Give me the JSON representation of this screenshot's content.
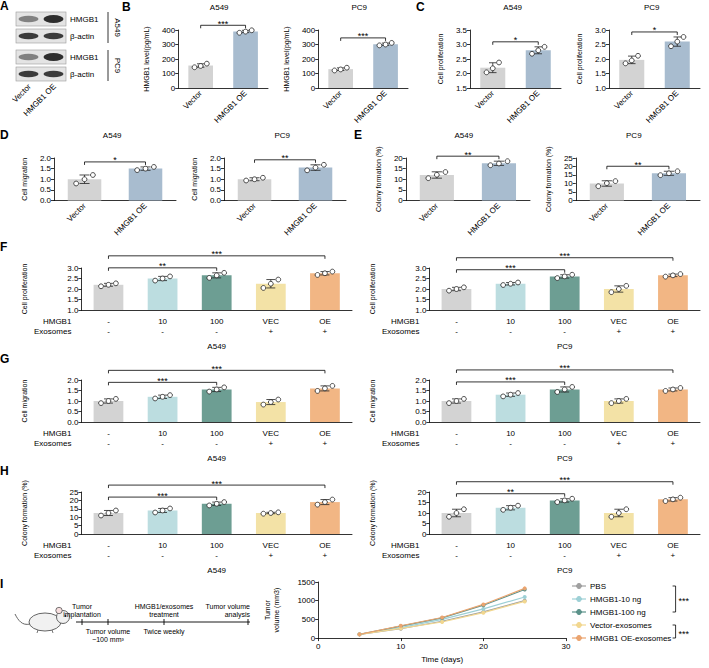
{
  "chart_data": [
    {
      "panel": "B",
      "type": "bar",
      "title": "A549",
      "y_label": "HMGB1 level(pg/mL)",
      "categories": [
        "Vector",
        "HMGB1 OE"
      ],
      "values": [
        155,
        390
      ],
      "errors": [
        12,
        8
      ],
      "points": [
        [
          143,
          152,
          168
        ],
        [
          381,
          389,
          398
        ]
      ],
      "colors": [
        "#d3d3d3",
        "#a8bccf"
      ],
      "ylim": [
        0,
        400
      ],
      "yticks": [
        0,
        100,
        200,
        300,
        400
      ],
      "grid": false,
      "comparisons": [
        {
          "groups": [
            0,
            1
          ],
          "label": "***"
        }
      ]
    },
    {
      "type": "bar",
      "title": "PC9",
      "y_label": "HMGB1 level(pg/mL)",
      "categories": [
        "Vector",
        "HMGB1 OE"
      ],
      "values": [
        130,
        302
      ],
      "errors": [
        9,
        8
      ],
      "points": [
        [
          121,
          128,
          140
        ],
        [
          294,
          300,
          311
        ]
      ],
      "colors": [
        "#d3d3d3",
        "#a8bccf"
      ],
      "ylim": [
        0,
        400
      ],
      "yticks": [
        0,
        100,
        200,
        300,
        400
      ],
      "grid": false,
      "comparisons": [
        {
          "groups": [
            0,
            1
          ],
          "label": "***"
        }
      ]
    },
    {
      "panel": "C",
      "type": "bar",
      "title": "A549",
      "y_label": "Cell proliferation",
      "categories": [
        "Vector",
        "HMGB1 OE"
      ],
      "values": [
        2.2,
        2.8
      ],
      "errors": [
        0.17,
        0.12
      ],
      "points": [
        [
          2.04,
          2.18,
          2.38
        ],
        [
          2.68,
          2.8,
          2.92
        ]
      ],
      "colors": [
        "#d3d3d3",
        "#a8bccf"
      ],
      "ylim": [
        1.5,
        3.5
      ],
      "yticks": [
        1.5,
        {
          "value": 2,
          "label": "2.0"
        },
        2.5,
        {
          "value": 3,
          "label": "3.0"
        },
        3.5
      ],
      "grid": false,
      "comparisons": [
        {
          "groups": [
            0,
            1
          ],
          "label": "*"
        }
      ]
    },
    {
      "type": "bar",
      "title": "PC9",
      "y_label": "Cell proliferation",
      "categories": [
        "Vector",
        "HMGB1 OE"
      ],
      "values": [
        1.97,
        2.6
      ],
      "errors": [
        0.13,
        0.16
      ],
      "points": [
        [
          1.85,
          1.95,
          2.11
        ],
        [
          2.44,
          2.6,
          2.76
        ]
      ],
      "colors": [
        "#d3d3d3",
        "#a8bccf"
      ],
      "ylim": [
        1,
        3
      ],
      "yticks": [
        {
          "value": 1,
          "label": "1.0"
        },
        1.5,
        {
          "value": 2,
          "label": "2.0"
        },
        2.5,
        {
          "value": 3,
          "label": "3.0"
        }
      ],
      "grid": false,
      "comparisons": [
        {
          "groups": [
            0,
            1
          ],
          "label": "*"
        }
      ]
    },
    {
      "panel": "D",
      "type": "bar",
      "title": "A549",
      "y_label": "Cell migration",
      "categories": [
        "Vector",
        "HMGB1 OE"
      ],
      "values": [
        1.0,
        1.5
      ],
      "errors": [
        0.2,
        0.08
      ],
      "points": [
        [
          0.8,
          1.0,
          1.2
        ],
        [
          1.43,
          1.5,
          1.58
        ]
      ],
      "colors": [
        "#d3d3d3",
        "#a8bccf"
      ],
      "ylim": [
        0,
        2
      ],
      "yticks": [
        {
          "value": 0,
          "label": "0.0"
        },
        0.5,
        {
          "value": 1,
          "label": "1.0"
        },
        1.5,
        {
          "value": 2,
          "label": "2.0"
        }
      ],
      "grid": false,
      "comparisons": [
        {
          "groups": [
            0,
            1
          ],
          "label": "*"
        }
      ]
    },
    {
      "type": "bar",
      "title": "PC9",
      "y_label": "Cell migration",
      "categories": [
        "Vector",
        "HMGB1 OE"
      ],
      "values": [
        1.0,
        1.55
      ],
      "errors": [
        0.07,
        0.13
      ],
      "points": [
        [
          0.94,
          1.0,
          1.07
        ],
        [
          1.42,
          1.55,
          1.68
        ]
      ],
      "colors": [
        "#d3d3d3",
        "#a8bccf"
      ],
      "ylim": [
        0,
        2
      ],
      "yticks": [
        {
          "value": 0,
          "label": "0.0"
        },
        0.5,
        {
          "value": 1,
          "label": "1.0"
        },
        1.5,
        {
          "value": 2,
          "label": "2.0"
        }
      ],
      "grid": false,
      "comparisons": [
        {
          "groups": [
            0,
            1
          ],
          "label": "**"
        }
      ]
    },
    {
      "panel": "E",
      "type": "bar",
      "title": "A549",
      "y_label": "Colony formation (%)",
      "categories": [
        "Vector",
        "HMGB1 OE"
      ],
      "values": [
        12,
        17.5
      ],
      "errors": [
        1.5,
        1.0
      ],
      "points": [
        [
          10.5,
          12.1,
          13.4
        ],
        [
          16.6,
          17.4,
          18.5
        ]
      ],
      "colors": [
        "#d3d3d3",
        "#a8bccf"
      ],
      "ylim": [
        0,
        20
      ],
      "yticks": [
        0,
        5,
        10,
        15,
        20
      ],
      "grid": false,
      "comparisons": [
        {
          "groups": [
            0,
            1
          ],
          "label": "**"
        }
      ]
    },
    {
      "type": "bar",
      "title": "PC9",
      "y_label": "Colony formation (%)",
      "categories": [
        "Vector",
        "HMGB1 OE"
      ],
      "values": [
        10,
        16
      ],
      "errors": [
        1.6,
        1.2
      ],
      "points": [
        [
          8.4,
          10.2,
          11.4
        ],
        [
          14.9,
          16,
          17.2
        ]
      ],
      "colors": [
        "#d3d3d3",
        "#a8bccf"
      ],
      "ylim": [
        0,
        25
      ],
      "yticks": [
        0,
        5,
        10,
        15,
        20,
        25
      ],
      "grid": false,
      "comparisons": [
        {
          "groups": [
            0,
            1
          ],
          "label": "**"
        }
      ]
    },
    {
      "panel": "F",
      "type": "bar",
      "x_label": "A549",
      "y_label": "Cell proliferation",
      "x_rows": [
        {
          "label": "HMGB1",
          "values": [
            "-",
            "10",
            "100",
            "VEC",
            "OE"
          ]
        },
        {
          "label": "Exosomes",
          "values": [
            "-",
            "-",
            "-",
            "+",
            "+"
          ]
        }
      ],
      "values": [
        2.2,
        2.5,
        2.65,
        2.25,
        2.75
      ],
      "errors": [
        0.07,
        0.1,
        0.12,
        0.2,
        0.08
      ],
      "points": [
        [
          2.13,
          2.2,
          2.27
        ],
        [
          2.4,
          2.5,
          2.6
        ],
        [
          2.53,
          2.65,
          2.77
        ],
        [
          2.05,
          2.25,
          2.45
        ],
        [
          2.67,
          2.75,
          2.83
        ]
      ],
      "colors": [
        "#d3d3d3",
        "#bcdde0",
        "#6d9e93",
        "#f3e2a6",
        "#f2b684"
      ],
      "ylim": [
        1,
        3
      ],
      "yticks": [
        {
          "value": 1,
          "label": "1.0"
        },
        1.5,
        {
          "value": 2,
          "label": "2.0"
        },
        2.5,
        {
          "value": 3,
          "label": "3.0"
        }
      ],
      "grid": false,
      "comparisons": [
        {
          "groups": [
            0,
            2
          ],
          "label": "**"
        },
        {
          "groups": [
            0,
            4
          ],
          "label": "***"
        }
      ]
    },
    {
      "type": "bar",
      "x_label": "PC9",
      "y_label": "Cell proliferation",
      "x_rows": [
        {
          "label": "HMGB1",
          "values": [
            "-",
            "10",
            "100",
            "VEC",
            "OE"
          ]
        },
        {
          "label": "Exosomes",
          "values": [
            "-",
            "-",
            "-",
            "+",
            "+"
          ]
        }
      ],
      "values": [
        2.0,
        2.25,
        2.6,
        2.0,
        2.65
      ],
      "errors": [
        0.08,
        0.06,
        0.08,
        0.15,
        0.06
      ],
      "points": [
        [
          1.92,
          2.0,
          2.08
        ],
        [
          2.19,
          2.25,
          2.31
        ],
        [
          2.52,
          2.6,
          2.68
        ],
        [
          1.85,
          2.0,
          2.15
        ],
        [
          2.59,
          2.65,
          2.71
        ]
      ],
      "colors": [
        "#d3d3d3",
        "#bcdde0",
        "#6d9e93",
        "#f3e2a6",
        "#f2b684"
      ],
      "ylim": [
        1,
        3
      ],
      "yticks": [
        {
          "value": 1,
          "label": "1.0"
        },
        1.5,
        {
          "value": 2,
          "label": "2.0"
        },
        2.5,
        {
          "value": 3,
          "label": "3.0"
        }
      ],
      "grid": false,
      "comparisons": [
        {
          "groups": [
            0,
            2
          ],
          "label": "***"
        },
        {
          "groups": [
            0,
            4
          ],
          "label": "***"
        }
      ]
    },
    {
      "panel": "G",
      "type": "bar",
      "x_label": "A549",
      "y_label": "Cell migration",
      "x_rows": [
        {
          "label": "HMGB1",
          "values": [
            "-",
            "10",
            "100",
            "VEC",
            "OE"
          ]
        },
        {
          "label": "Exosomes",
          "values": [
            "-",
            "-",
            "-",
            "+",
            "+"
          ]
        }
      ],
      "values": [
        1.0,
        1.2,
        1.55,
        0.95,
        1.6
      ],
      "errors": [
        0.1,
        0.08,
        0.1,
        0.12,
        0.12
      ],
      "points": [
        [
          0.9,
          1.0,
          1.1
        ],
        [
          1.12,
          1.2,
          1.28
        ],
        [
          1.45,
          1.55,
          1.65
        ],
        [
          0.83,
          0.95,
          1.07
        ],
        [
          1.48,
          1.6,
          1.72
        ]
      ],
      "colors": [
        "#d3d3d3",
        "#bcdde0",
        "#6d9e93",
        "#f3e2a6",
        "#f2b684"
      ],
      "ylim": [
        0,
        2
      ],
      "yticks": [
        {
          "value": 0,
          "label": "0.0"
        },
        0.5,
        {
          "value": 1,
          "label": "1.0"
        },
        1.5,
        {
          "value": 2,
          "label": "2.0"
        }
      ],
      "grid": false,
      "comparisons": [
        {
          "groups": [
            0,
            2
          ],
          "label": "***"
        },
        {
          "groups": [
            0,
            4
          ],
          "label": "***"
        }
      ]
    },
    {
      "type": "bar",
      "x_label": "PC9",
      "y_label": "Cell migration",
      "x_rows": [
        {
          "label": "HMGB1",
          "values": [
            "-",
            "10",
            "100",
            "VEC",
            "OE"
          ]
        },
        {
          "label": "Exosomes",
          "values": [
            "-",
            "-",
            "-",
            "+",
            "+"
          ]
        }
      ],
      "values": [
        1.0,
        1.3,
        1.55,
        1.0,
        1.55
      ],
      "errors": [
        0.1,
        0.08,
        0.12,
        0.1,
        0.07
      ],
      "points": [
        [
          0.9,
          1.0,
          1.1
        ],
        [
          1.22,
          1.3,
          1.38
        ],
        [
          1.43,
          1.55,
          1.67
        ],
        [
          0.9,
          1.0,
          1.1
        ],
        [
          1.48,
          1.55,
          1.62
        ]
      ],
      "colors": [
        "#d3d3d3",
        "#bcdde0",
        "#6d9e93",
        "#f3e2a6",
        "#f2b684"
      ],
      "ylim": [
        0,
        2
      ],
      "yticks": [
        {
          "value": 0,
          "label": "0.0"
        },
        0.5,
        {
          "value": 1,
          "label": "1.0"
        },
        1.5,
        {
          "value": 2,
          "label": "2.0"
        }
      ],
      "grid": false,
      "comparisons": [
        {
          "groups": [
            0,
            2
          ],
          "label": "***"
        },
        {
          "groups": [
            0,
            4
          ],
          "label": "***"
        }
      ]
    },
    {
      "panel": "H",
      "type": "bar",
      "x_label": "A549",
      "y_label": "Colony formation (%)",
      "x_rows": [
        {
          "label": "HMGB1",
          "values": [
            "-",
            "10",
            "100",
            "VEC",
            "OE"
          ]
        },
        {
          "label": "Exosomes",
          "values": [
            "-",
            "-",
            "-",
            "+",
            "+"
          ]
        }
      ],
      "values": [
        12.5,
        14,
        18,
        12.5,
        19
      ],
      "errors": [
        1.5,
        1.2,
        1,
        0.4,
        1.5
      ],
      "points": [
        [
          11,
          12.5,
          14
        ],
        [
          12.8,
          14,
          15.2
        ],
        [
          17,
          18,
          19
        ],
        [
          12.1,
          12.5,
          12.9
        ],
        [
          17.5,
          19,
          20.5
        ]
      ],
      "colors": [
        "#d3d3d3",
        "#bcdde0",
        "#6d9e93",
        "#f3e2a6",
        "#f2b684"
      ],
      "ylim": [
        0,
        25
      ],
      "yticks": [
        0,
        5,
        10,
        15,
        20,
        25
      ],
      "grid": false,
      "comparisons": [
        {
          "groups": [
            0,
            2
          ],
          "label": "***"
        },
        {
          "groups": [
            0,
            4
          ],
          "label": "***"
        }
      ]
    },
    {
      "type": "bar",
      "x_label": "PC9",
      "y_label": "Colony formation (%)",
      "x_rows": [
        {
          "label": "HMGB1",
          "values": [
            "-",
            "10",
            "100",
            "VEC",
            "OE"
          ]
        },
        {
          "label": "Exosomes",
          "values": [
            "-",
            "-",
            "-",
            "+",
            "+"
          ]
        }
      ],
      "values": [
        10,
        12.5,
        16,
        10,
        16.5
      ],
      "errors": [
        1.8,
        1,
        0.8,
        1.8,
        0.8
      ],
      "points": [
        [
          8.2,
          10,
          11.8
        ],
        [
          11.5,
          12.5,
          13.5
        ],
        [
          15.2,
          16,
          16.8
        ],
        [
          8.2,
          10,
          11.8
        ],
        [
          15.7,
          16.5,
          17.3
        ]
      ],
      "colors": [
        "#d3d3d3",
        "#bcdde0",
        "#6d9e93",
        "#f3e2a6",
        "#f2b684"
      ],
      "ylim": [
        0,
        20
      ],
      "yticks": [
        0,
        5,
        10,
        15,
        20
      ],
      "grid": false,
      "comparisons": [
        {
          "groups": [
            0,
            2
          ],
          "label": "**"
        },
        {
          "groups": [
            0,
            4
          ],
          "label": "***"
        }
      ]
    },
    {
      "type": "line",
      "x_label": "Time (days)",
      "y_label": "Tumor volume (mm3)",
      "x": [
        5,
        10,
        15,
        20,
        25
      ],
      "series": [
        {
          "name": "PBS",
          "color": "#a0a0a0",
          "values": [
            100,
            250,
            450,
            700,
            1000
          ]
        },
        {
          "name": "HMGB1-10 ng",
          "color": "#9dd0d6",
          "values": [
            100,
            280,
            500,
            780,
            1100
          ]
        },
        {
          "name": "HMGB1-100 ng",
          "color": "#5b928a",
          "values": [
            100,
            320,
            540,
            880,
            1300
          ]
        },
        {
          "name": "Vector-exosomes",
          "color": "#f2d78f",
          "values": [
            100,
            260,
            430,
            680,
            980
          ]
        },
        {
          "name": "HMGB1 OE-exosomes",
          "color": "#eba46f",
          "values": [
            100,
            330,
            550,
            900,
            1330
          ]
        }
      ],
      "xlim": [
        0,
        30
      ],
      "xticks": [
        0,
        10,
        20,
        30
      ],
      "ylim": [
        0,
        1500
      ],
      "yticks": [
        0,
        500,
        1000,
        1500
      ],
      "grid": false,
      "legend": "right",
      "marker": "circle",
      "line_style": "solid",
      "comparisons": [
        {
          "series": [
            "PBS",
            "HMGB1-100 ng"
          ],
          "label": "***"
        },
        {
          "series": [
            "Vector-exosomes",
            "HMGB1 OE-exosomes"
          ],
          "label": "***"
        }
      ]
    }
  ],
  "western_blot": {
    "panel": "A",
    "lanes": [
      "Vector",
      "HMGB1 OE"
    ],
    "blocks": [
      {
        "cell_line": "A549",
        "bands": [
          "HMGB1",
          "β-actin"
        ]
      },
      {
        "cell_line": "PC9",
        "bands": [
          "HMGB1",
          "β-actin"
        ]
      }
    ]
  },
  "schematic": {
    "panel": "I",
    "steps": [
      {
        "label": "Tumor implantation",
        "side": "above"
      },
      {
        "label": "Tumor volume ~100 mm³",
        "side": "below"
      },
      {
        "label": "HMGB1/exosomes treatment",
        "side": "above"
      },
      {
        "label": "Twice weekly",
        "side": "below"
      },
      {
        "label": "Tumor volume analysis",
        "side": "above"
      }
    ]
  }
}
